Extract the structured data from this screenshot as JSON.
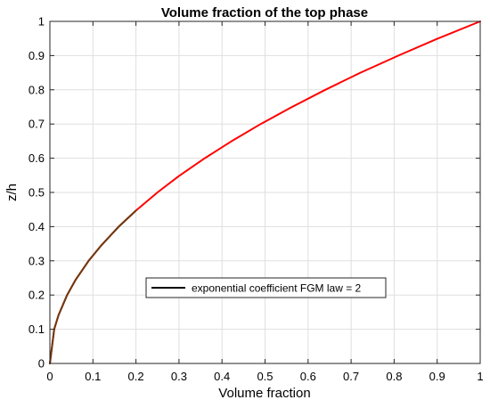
{
  "chart_data": {
    "type": "line",
    "title": "Volume fraction of the top phase",
    "xlabel": "Volume fraction",
    "ylabel": "z/h",
    "xlim": [
      0,
      1
    ],
    "ylim": [
      0,
      1
    ],
    "grid": true,
    "x_ticks": [
      0,
      0.1,
      0.2,
      0.3,
      0.4,
      0.5,
      0.6,
      0.7,
      0.8,
      0.9,
      1
    ],
    "y_ticks": [
      0,
      0.1,
      0.2,
      0.3,
      0.4,
      0.5,
      0.6,
      0.7,
      0.8,
      0.9,
      1
    ],
    "x_tick_labels": [
      "0",
      "0.1",
      "0.2",
      "0.3",
      "0.4",
      "0.5",
      "0.6",
      "0.7",
      "0.8",
      "0.9",
      "1"
    ],
    "y_tick_labels": [
      "0",
      "0.1",
      "0.2",
      "0.3",
      "0.4",
      "0.5",
      "0.6",
      "0.7",
      "0.8",
      "0.9",
      "1"
    ],
    "legend": {
      "placement": "center-bottom",
      "entries": [
        {
          "label": "exponential coefficient FGM law = 2",
          "color": "#000000"
        }
      ]
    },
    "series": [
      {
        "color": "#ff0000",
        "x": [
          0,
          0.01,
          0.02,
          0.04,
          0.06,
          0.09,
          0.12,
          0.16,
          0.2,
          0.25,
          0.3,
          0.36,
          0.42,
          0.49,
          0.56,
          0.64,
          0.72,
          0.81,
          0.9,
          1.0
        ],
        "y": [
          0,
          0.1,
          0.141,
          0.2,
          0.245,
          0.3,
          0.346,
          0.4,
          0.447,
          0.5,
          0.548,
          0.6,
          0.648,
          0.7,
          0.748,
          0.8,
          0.849,
          0.9,
          0.949,
          1.0
        ]
      },
      {
        "color": "#6b3a10",
        "x": [
          0,
          0.01,
          0.02,
          0.04,
          0.06,
          0.09,
          0.12,
          0.16,
          0.2
        ],
        "y": [
          0,
          0.1,
          0.141,
          0.2,
          0.245,
          0.3,
          0.346,
          0.4,
          0.447
        ]
      }
    ]
  }
}
